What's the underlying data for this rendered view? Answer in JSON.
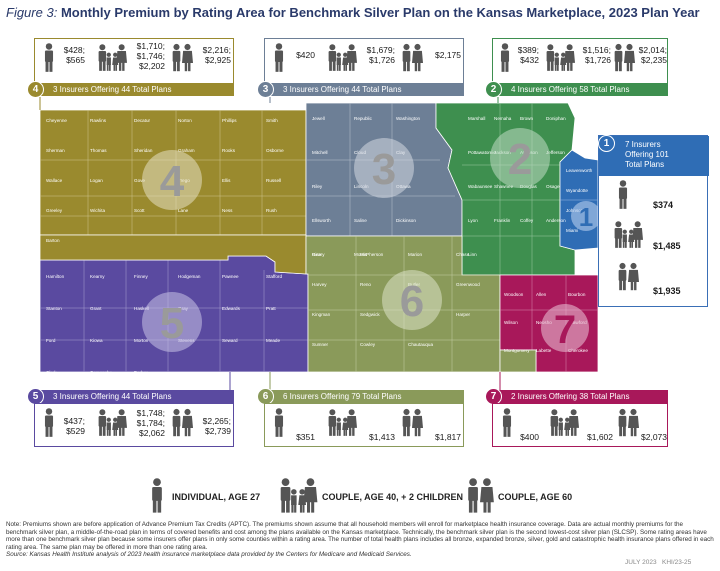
{
  "title": {
    "figure_label": "Figure 3:",
    "main": "Monthly Premium by Rating Area for Benchmark Silver Plan on the Kansas Marketplace, 2023 Plan Year"
  },
  "regions": {
    "r1": {
      "number": "1",
      "color": "#2f6db5",
      "summary_line1": "7 Insurers",
      "summary_line2": "Offering 101",
      "summary_line3": "Total Plans",
      "individual": "$374",
      "couple_children": "$1,485",
      "couple_60": "$1,935"
    },
    "r2": {
      "number": "2",
      "color": "#3e8f4f",
      "summary": "4 Insurers Offering 58 Total Plans",
      "ind_1": "$389;",
      "ind_2": "$432",
      "cc_1": "$1,516;",
      "cc_2": "$1,726",
      "c60_1": "$2,014;",
      "c60_2": "$2,235"
    },
    "r3": {
      "number": "3",
      "color": "#6d7f96",
      "summary": "3 Insurers Offering 44 Total Plans",
      "ind_1": "$420",
      "cc_1": "$1,679;",
      "cc_2": "$1,726",
      "c60_1": "$2,175"
    },
    "r4": {
      "number": "4",
      "color": "#9a8a2e",
      "summary": "3 Insurers Offering 44 Total Plans",
      "ind_1": "$428;",
      "ind_2": "$565",
      "cc_1": "$1,710;",
      "cc_2": "$1,746;",
      "cc_3": "$2,202",
      "c60_1": "$2,216;",
      "c60_2": "$2,925"
    },
    "r5": {
      "number": "5",
      "color": "#5a4aa0",
      "summary": "3 Insurers Offering 44 Total Plans",
      "ind_1": "$437;",
      "ind_2": "$529",
      "cc_1": "$1,748;",
      "cc_2": "$1,784;",
      "cc_3": "$2,062",
      "c60_1": "$2,265;",
      "c60_2": "$2,739"
    },
    "r6": {
      "number": "6",
      "color": "#8a9a5a",
      "summary": "6 Insurers Offering 79 Total Plans",
      "ind_1": "$351",
      "cc_1": "$1,413",
      "c60_1": "$1,817"
    },
    "r7": {
      "number": "7",
      "color": "#a8185a",
      "summary": "2 Insurers Offering 38 Total Plans",
      "ind_1": "$400",
      "cc_1": "$1,602",
      "c60_1": "$2,073"
    }
  },
  "legend": {
    "individual": "INDIVIDUAL, AGE 27",
    "couple_children": "COUPLE, AGE 40, + 2 CHILDREN",
    "couple_60": "COUPLE, AGE 60"
  },
  "counties": {
    "r4": [
      "Cheyenne",
      "Rawlins",
      "Decatur",
      "Norton",
      "Phillips",
      "Smith",
      "Sherman",
      "Thomas",
      "Sheridan",
      "Graham",
      "Rooks",
      "Osborne",
      "Wallace",
      "Logan",
      "Gove",
      "Trego",
      "Ellis",
      "Russell",
      "Greeley",
      "Wichita",
      "Scott",
      "Lane",
      "Ness",
      "Rush",
      "Barton"
    ],
    "r3": [
      "Jewell",
      "Republic",
      "Washington",
      "Mitchell",
      "Cloud",
      "Clay",
      "Riley",
      "Lincoln",
      "Ottawa",
      "Ellsworth",
      "Saline",
      "Dickinson",
      "Geary",
      "Morris"
    ],
    "r2": [
      "Marshall",
      "Nemaha",
      "Brown",
      "Doniphan",
      "Pottawatomie",
      "Jackson",
      "Atchison",
      "Jefferson",
      "Wabaunsee",
      "Shawnee",
      "Douglas",
      "Osage",
      "Lyon",
      "Franklin",
      "Coffey",
      "Anderson",
      "Linn"
    ],
    "r1": [
      "Leavenworth",
      "Wyandotte",
      "Johnson",
      "Miami"
    ],
    "r5": [
      "Hamilton",
      "Kearny",
      "Finney",
      "Hodgeman",
      "Pawnee",
      "Stafford",
      "Stanton",
      "Grant",
      "Haskell",
      "Gray",
      "Edwards",
      "Pratt",
      "Ford",
      "Kiowa",
      "Morton",
      "Stevens",
      "Seward",
      "Meade",
      "Clark",
      "Comanche",
      "Barber"
    ],
    "r6": [
      "Rice",
      "McPherson",
      "Marion",
      "Chase",
      "Harvey",
      "Reno",
      "Butler",
      "Greenwood",
      "Kingman",
      "Sedgwick",
      "Elk",
      "Harper",
      "Sumner",
      "Cowley",
      "Chautauqua"
    ],
    "r7": [
      "Woodson",
      "Allen",
      "Bourbon",
      "Wilson",
      "Neosho",
      "Crawford",
      "Montgomery",
      "Labette",
      "Cherokee"
    ]
  },
  "note": "Note: Premiums shown are before application of Advance Premium Tax Credits (APTC). The premiums shown assume that all household members will enroll for marketplace health insurance coverage. Data are actual monthly premiums for the benchmark silver plan, a middle-of-the-road plan in terms of covered benefits and cost among the plans available on the Kansas marketplace. Technically, the benchmark silver plan is the second lowest-cost silver plan (SLCSP). Some rating areas have more than one benchmark silver plan because some insurers offer plans in only some counties within a rating area. The number of total health plans includes all bronze, expanded bronze, silver, gold and catastrophic health insurance plans offered in each rating area. The same plan may be offered in more than one rating area.",
  "source": "Source: Kansas Health Institute analysis of 2023 health insurance marketplace data provided by the Centers for Medicare and Medicaid Services.",
  "footer": {
    "date": "JULY 2023",
    "code": "KHI/23-25"
  },
  "colors": {
    "title": "#2a3a6a",
    "icon": "#555555"
  }
}
